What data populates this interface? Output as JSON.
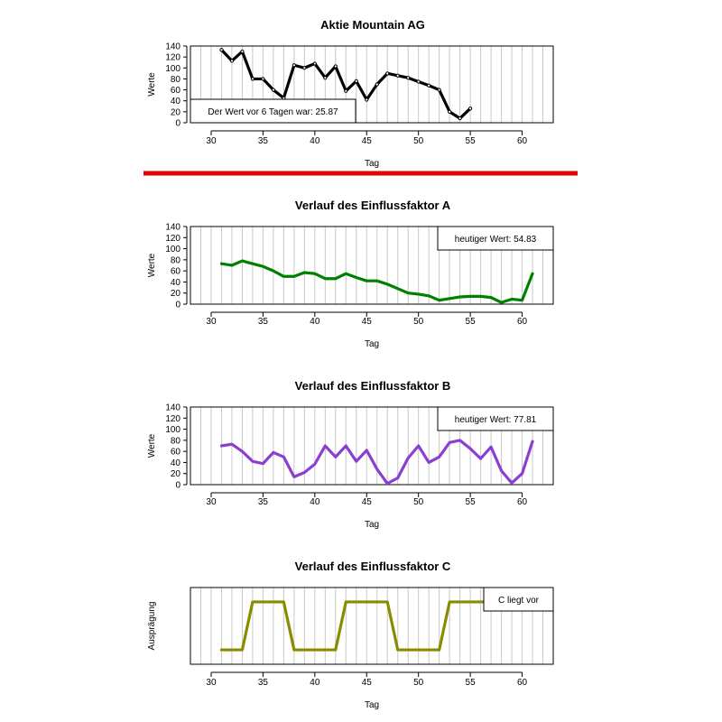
{
  "chart_data": [
    {
      "id": "stock",
      "type": "line",
      "title": "Aktie  Mountain AG",
      "xlabel": "Tag",
      "ylabel": "Werte",
      "xlim": [
        28,
        63
      ],
      "ylim": [
        0,
        140
      ],
      "xticks": [
        30,
        35,
        40,
        45,
        50,
        55,
        60
      ],
      "yticks": [
        0,
        20,
        40,
        60,
        80,
        100,
        120,
        140
      ],
      "color": "#000000",
      "annotation": "Der Wert vor 6 Tagen war: 25.87",
      "annotation_position": "bottom-left",
      "series": [
        {
          "x": [
            31,
            32,
            33,
            34,
            35,
            36,
            37,
            38,
            39,
            40,
            41,
            42,
            43,
            44,
            45,
            46,
            47,
            48,
            49,
            50,
            51,
            52,
            53,
            54,
            55
          ],
          "y": [
            133,
            113,
            130,
            80,
            80,
            60,
            45,
            105,
            100,
            108,
            82,
            103,
            58,
            76,
            42,
            70,
            90,
            86,
            82,
            75,
            68,
            60,
            20,
            8,
            26
          ]
        }
      ]
    },
    {
      "id": "factor-a",
      "type": "line",
      "title": "Verlauf des Einflussfaktor A",
      "xlabel": "Tag",
      "ylabel": "Werte",
      "xlim": [
        28,
        63
      ],
      "ylim": [
        0,
        140
      ],
      "xticks": [
        30,
        35,
        40,
        45,
        50,
        55,
        60
      ],
      "yticks": [
        0,
        20,
        40,
        60,
        80,
        100,
        120,
        140
      ],
      "color": "#008000",
      "annotation": "heutiger Wert: 54.83",
      "annotation_position": "top-right",
      "series": [
        {
          "x": [
            31,
            32,
            33,
            34,
            35,
            36,
            37,
            38,
            39,
            40,
            41,
            42,
            43,
            44,
            45,
            46,
            47,
            48,
            49,
            50,
            51,
            52,
            53,
            54,
            55,
            56,
            57,
            58,
            59,
            60,
            61
          ],
          "y": [
            73,
            70,
            78,
            73,
            68,
            60,
            50,
            50,
            57,
            55,
            46,
            46,
            55,
            48,
            42,
            42,
            36,
            28,
            20,
            18,
            15,
            7,
            10,
            13,
            14,
            14,
            12,
            3,
            9,
            7,
            55
          ]
        }
      ]
    },
    {
      "id": "factor-b",
      "type": "line",
      "title": "Verlauf des Einflussfaktor B",
      "xlabel": "Tag",
      "ylabel": "Werte",
      "xlim": [
        28,
        63
      ],
      "ylim": [
        0,
        140
      ],
      "xticks": [
        30,
        35,
        40,
        45,
        50,
        55,
        60
      ],
      "yticks": [
        0,
        20,
        40,
        60,
        80,
        100,
        120,
        140
      ],
      "color": "#8b3fd0",
      "annotation": "heutiger Wert: 77.81",
      "annotation_position": "top-right",
      "series": [
        {
          "x": [
            31,
            32,
            33,
            34,
            35,
            36,
            37,
            38,
            39,
            40,
            41,
            42,
            43,
            44,
            45,
            46,
            47,
            48,
            49,
            50,
            51,
            52,
            53,
            54,
            55,
            56,
            57,
            58,
            59,
            60,
            61
          ],
          "y": [
            70,
            73,
            60,
            42,
            38,
            58,
            50,
            14,
            22,
            37,
            70,
            50,
            70,
            42,
            62,
            28,
            2,
            12,
            48,
            70,
            40,
            50,
            76,
            80,
            65,
            47,
            68,
            25,
            3,
            20,
            78
          ]
        }
      ]
    },
    {
      "id": "factor-c",
      "type": "line",
      "title": "Verlauf des Einflussfaktor C",
      "xlabel": "Tag",
      "ylabel": "Ausprägung",
      "xlim": [
        28,
        63
      ],
      "ylim": [
        -0.3,
        1.3
      ],
      "xticks": [
        30,
        35,
        40,
        45,
        50,
        55,
        60
      ],
      "yticks": [],
      "color": "#8b8b00",
      "annotation": "C liegt vor",
      "annotation_position": "top-right",
      "series": [
        {
          "x": [
            31,
            32,
            33,
            34,
            35,
            36,
            37,
            38,
            39,
            40,
            41,
            42,
            43,
            44,
            45,
            46,
            47,
            48,
            49,
            50,
            51,
            52,
            53,
            54,
            55,
            56,
            57,
            58,
            59,
            60,
            61
          ],
          "y": [
            0,
            0,
            0,
            1,
            1,
            1,
            1,
            0,
            0,
            0,
            0,
            0,
            1,
            1,
            1,
            1,
            1,
            0,
            0,
            0,
            0,
            0,
            1,
            1,
            1,
            1,
            1,
            1,
            1,
            1,
            1
          ]
        }
      ]
    }
  ],
  "separator_color": "#e00000",
  "grid_color": "#c8c8c8"
}
